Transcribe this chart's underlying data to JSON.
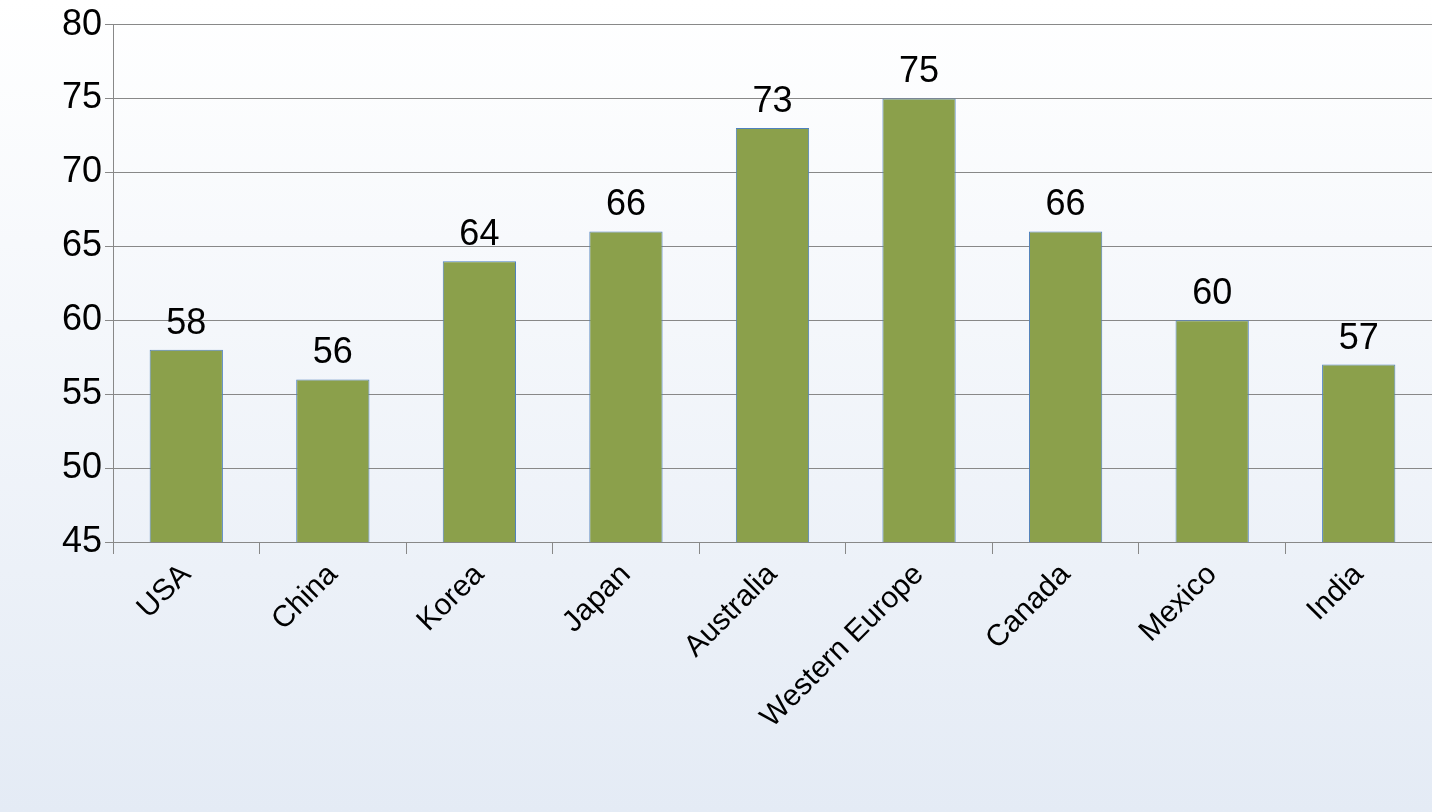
{
  "chart_data": {
    "type": "bar",
    "categories": [
      "USA",
      "China",
      "Korea",
      "Japan",
      "Australia",
      "Western Europe",
      "Canada",
      "Mexico",
      "India"
    ],
    "values": [
      58,
      56,
      64,
      66,
      73,
      75,
      66,
      60,
      57
    ],
    "color": "#8ba04b",
    "ylim": [
      45,
      80
    ],
    "yticks": [
      45,
      50,
      55,
      60,
      65,
      70,
      75,
      80
    ],
    "grid": "y",
    "data_labels": true
  }
}
